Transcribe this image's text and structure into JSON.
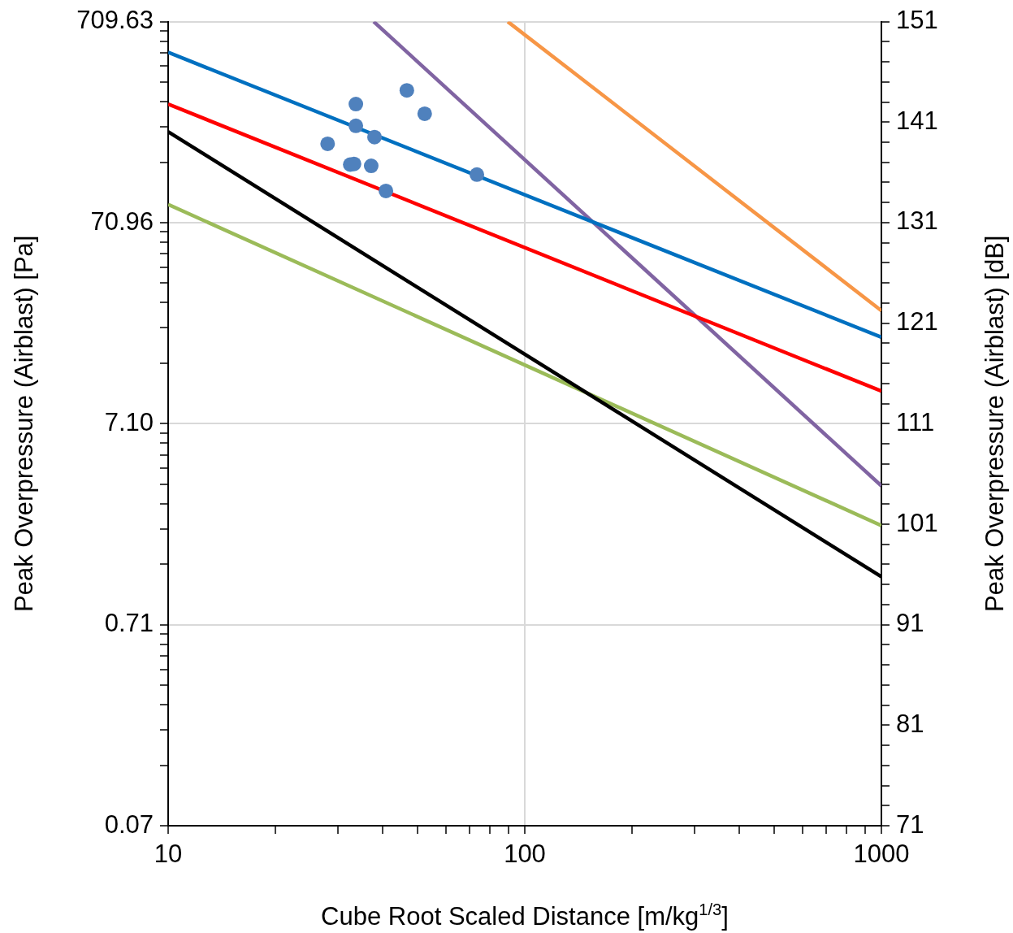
{
  "chart_data": {
    "type": "line",
    "xlabel": "Cube Root Scaled Distance [m/kg$^{1/3}$]",
    "ylabel": "Peak Overpressure (Airblast) [Pa]",
    "y2label": "Peak Overpressure (Airblast) [dB]",
    "log": "xy",
    "grid": true,
    "legend": false,
    "line_style": "solid",
    "xlim": [
      10,
      1000
    ],
    "xticks": [
      10,
      {
        "value": 20,
        "label": null
      },
      {
        "value": 30,
        "label": null
      },
      {
        "value": 40,
        "label": null
      },
      {
        "value": 50,
        "label": null
      },
      {
        "value": 60,
        "label": null
      },
      {
        "value": 70,
        "label": null
      },
      {
        "value": 80,
        "label": null
      },
      {
        "value": 90,
        "label": null
      },
      100,
      {
        "value": 200,
        "label": null
      },
      {
        "value": 300,
        "label": null
      },
      {
        "value": 400,
        "label": null
      },
      {
        "value": 500,
        "label": null
      },
      {
        "value": 600,
        "label": null
      },
      {
        "value": 700,
        "label": null
      },
      {
        "value": 800,
        "label": null
      },
      {
        "value": 900,
        "label": null
      },
      1000
    ],
    "ylim": [
      0.07096,
      709.63
    ],
    "yticks": [
      {
        "value": 0.07096,
        "label": "0.07"
      },
      {
        "value": 0.1419,
        "label": null
      },
      {
        "value": 0.2129,
        "label": null
      },
      {
        "value": 0.2838,
        "label": null
      },
      {
        "value": 0.3548,
        "label": null
      },
      {
        "value": 0.4258,
        "label": null
      },
      {
        "value": 0.4967,
        "label": null
      },
      {
        "value": 0.5677,
        "label": null
      },
      {
        "value": 0.6386,
        "label": null
      },
      {
        "value": 0.7096,
        "label": "0.71"
      },
      {
        "value": 1.419,
        "label": null
      },
      {
        "value": 2.129,
        "label": null
      },
      {
        "value": 2.838,
        "label": null
      },
      {
        "value": 3.548,
        "label": null
      },
      {
        "value": 4.258,
        "label": null
      },
      {
        "value": 4.967,
        "label": null
      },
      {
        "value": 5.677,
        "label": null
      },
      {
        "value": 6.386,
        "label": null
      },
      {
        "value": 7.096,
        "label": "7.10"
      },
      {
        "value": 14.19,
        "label": null
      },
      {
        "value": 21.29,
        "label": null
      },
      {
        "value": 28.38,
        "label": null
      },
      {
        "value": 35.48,
        "label": null
      },
      {
        "value": 42.58,
        "label": null
      },
      {
        "value": 49.67,
        "label": null
      },
      {
        "value": 56.77,
        "label": null
      },
      {
        "value": 63.86,
        "label": null
      },
      {
        "value": 70.96,
        "label": "70.96"
      },
      {
        "value": 141.9,
        "label": null
      },
      {
        "value": 212.9,
        "label": null
      },
      {
        "value": 283.8,
        "label": null
      },
      {
        "value": 354.8,
        "label": null
      },
      {
        "value": 425.8,
        "label": null
      },
      {
        "value": 496.7,
        "label": null
      },
      {
        "value": 567.7,
        "label": null
      },
      {
        "value": 638.6,
        "label": null
      },
      709.63
    ],
    "y2lim": [
      71,
      151
    ],
    "y2ticks": [
      71,
      {
        "value": 73,
        "label": null
      },
      {
        "value": 75,
        "label": null
      },
      {
        "value": 77,
        "label": null
      },
      {
        "value": 79,
        "label": null
      },
      81,
      {
        "value": 83,
        "label": null
      },
      {
        "value": 85,
        "label": null
      },
      {
        "value": 87,
        "label": null
      },
      {
        "value": 89,
        "label": null
      },
      91,
      {
        "value": 93,
        "label": null
      },
      {
        "value": 95,
        "label": null
      },
      {
        "value": 97,
        "label": null
      },
      {
        "value": 99,
        "label": null
      },
      101,
      {
        "value": 103,
        "label": null
      },
      {
        "value": 105,
        "label": null
      },
      {
        "value": 107,
        "label": null
      },
      {
        "value": 109,
        "label": null
      },
      111,
      {
        "value": 113,
        "label": null
      },
      {
        "value": 115,
        "label": null
      },
      {
        "value": 117,
        "label": null
      },
      {
        "value": 119,
        "label": null
      },
      121,
      {
        "value": 123,
        "label": null
      },
      {
        "value": 125,
        "label": null
      },
      {
        "value": 127,
        "label": null
      },
      {
        "value": 129,
        "label": null
      },
      131,
      {
        "value": 133,
        "label": null
      },
      {
        "value": 135,
        "label": null
      },
      {
        "value": 137,
        "label": null
      },
      {
        "value": 139,
        "label": null
      },
      141,
      {
        "value": 143,
        "label": null
      },
      {
        "value": 145,
        "label": null
      },
      {
        "value": 147,
        "label": null
      },
      {
        "value": 149,
        "label": null
      },
      151
    ],
    "series": [
      {
        "type": "scatter",
        "marker": "circle",
        "color": "#4f81bd",
        "x": [
          28,
          33.6,
          33.6,
          37.9,
          32.4,
          33.2,
          37.1,
          40.8,
          46.7,
          52.4,
          73.4
        ],
        "values": [
          175,
          276,
          215,
          189,
          138,
          139,
          136,
          102,
          323,
          247,
          123
        ]
      },
      {
        "type": "line",
        "marker": "none",
        "color": "#0070c0",
        "x": [
          10,
          1000
        ],
        "values": [
          499,
          19.1
        ]
      },
      {
        "type": "line",
        "marker": "none",
        "color": "#ff0000",
        "x": [
          10,
          1000
        ],
        "values": [
          276,
          10.3
        ]
      },
      {
        "type": "line",
        "marker": "none",
        "color": "#000000",
        "x": [
          10,
          1000
        ],
        "values": [
          201,
          1.23
        ]
      },
      {
        "type": "line",
        "marker": "none",
        "color": "#9bbb59",
        "x": [
          10,
          1000
        ],
        "values": [
          87.4,
          2.21
        ]
      },
      {
        "type": "line",
        "marker": "none",
        "color": "#8064a2",
        "x": [
          37.7,
          1000
        ],
        "values": [
          709.63,
          3.48
        ]
      },
      {
        "type": "line",
        "marker": "none",
        "color": "#f79646",
        "x": [
          89.6,
          1000
        ],
        "values": [
          709.63,
          25.9
        ]
      }
    ]
  }
}
